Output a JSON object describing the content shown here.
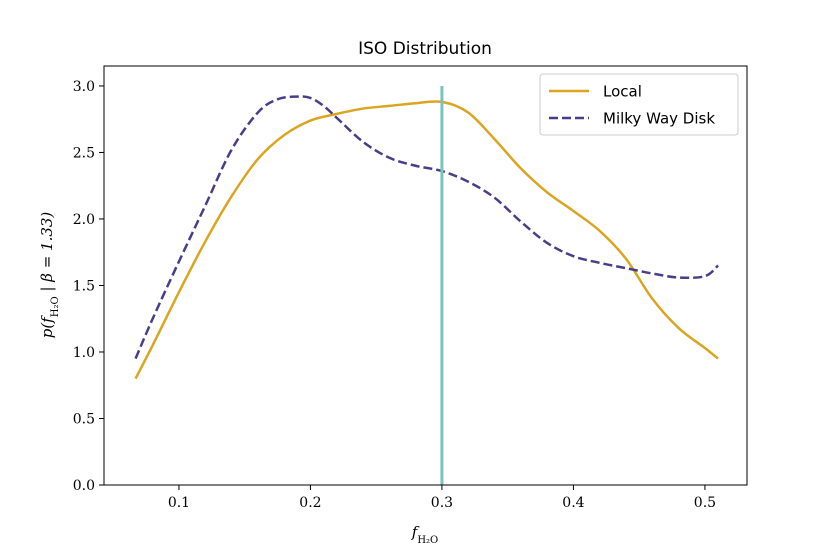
{
  "chart_data": {
    "type": "line",
    "title": "ISO Distribution",
    "xlabel": "f_H2O",
    "ylabel": "p(f_H2O | β = 1.33)",
    "xlim": [
      0.043,
      0.532
    ],
    "ylim": [
      0.0,
      3.15
    ],
    "x_ticks": [
      0.1,
      0.2,
      0.3,
      0.4,
      0.5
    ],
    "x_tick_labels": [
      "0.1",
      "0.2",
      "0.3",
      "0.4",
      "0.5"
    ],
    "y_ticks": [
      0.0,
      0.5,
      1.0,
      1.5,
      2.0,
      2.5,
      3.0
    ],
    "y_tick_labels": [
      "0.0",
      "0.5",
      "1.0",
      "1.5",
      "2.0",
      "2.5",
      "3.0"
    ],
    "grid": false,
    "legend_position": "top-right",
    "vline": {
      "x": 0.3,
      "color": "#7ec2bd"
    },
    "series": [
      {
        "name": "Local",
        "color": "#daa520",
        "dash": "solid",
        "x": [
          0.067,
          0.08,
          0.1,
          0.12,
          0.14,
          0.16,
          0.18,
          0.2,
          0.22,
          0.24,
          0.26,
          0.28,
          0.3,
          0.32,
          0.34,
          0.36,
          0.38,
          0.4,
          0.42,
          0.44,
          0.46,
          0.48,
          0.5,
          0.51
        ],
        "values": [
          0.8,
          1.05,
          1.45,
          1.83,
          2.17,
          2.45,
          2.63,
          2.74,
          2.79,
          2.83,
          2.85,
          2.87,
          2.88,
          2.8,
          2.6,
          2.38,
          2.2,
          2.06,
          1.91,
          1.7,
          1.4,
          1.18,
          1.03,
          0.95
        ]
      },
      {
        "name": "Milky Way Disk",
        "color": "#483d8b",
        "dash": "dashed",
        "x": [
          0.067,
          0.08,
          0.1,
          0.12,
          0.14,
          0.16,
          0.175,
          0.19,
          0.2,
          0.21,
          0.22,
          0.24,
          0.26,
          0.28,
          0.3,
          0.32,
          0.34,
          0.36,
          0.38,
          0.4,
          0.42,
          0.44,
          0.46,
          0.48,
          0.5,
          0.51
        ],
        "values": [
          0.95,
          1.25,
          1.68,
          2.1,
          2.52,
          2.8,
          2.9,
          2.92,
          2.91,
          2.85,
          2.76,
          2.58,
          2.46,
          2.4,
          2.36,
          2.28,
          2.16,
          1.98,
          1.82,
          1.72,
          1.67,
          1.63,
          1.59,
          1.56,
          1.57,
          1.65
        ]
      }
    ]
  }
}
